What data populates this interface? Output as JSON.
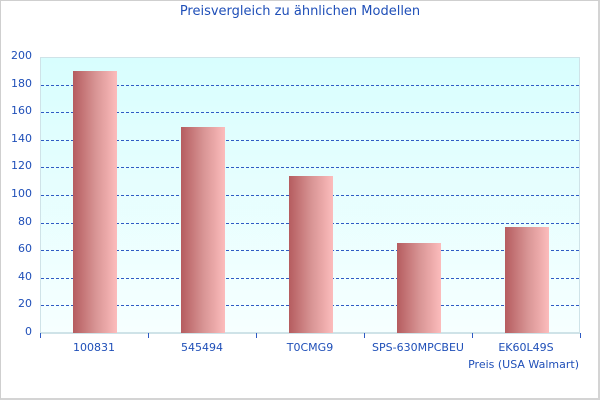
{
  "chart_data": {
    "type": "bar",
    "title": "Preisvergleich zu ähnlichen Modellen",
    "categories": [
      "100831",
      "545494",
      "T0CMG9",
      "SPS-630MPCBEU",
      "EK60L49S"
    ],
    "series": [
      {
        "name": "Preis (USA Walmart)",
        "values": [
          190,
          149,
          114,
          65,
          77
        ]
      }
    ],
    "xlabel": "Preis (USA Walmart)",
    "ylabel": "",
    "ylim": [
      0,
      200
    ],
    "yticks": [
      "0",
      "20",
      "40",
      "60",
      "80",
      "100",
      "120",
      "140",
      "160",
      "180",
      "200"
    ],
    "grid": true,
    "legend": "none",
    "colors": {
      "bar_dark": "#b55c5f",
      "bar_light": "#fcbcbc",
      "grid": "#2f5bc4",
      "text": "#1f4fb8",
      "plot_bg_top": "#d8fefe",
      "plot_bg_bottom": "#f6ffff"
    }
  }
}
